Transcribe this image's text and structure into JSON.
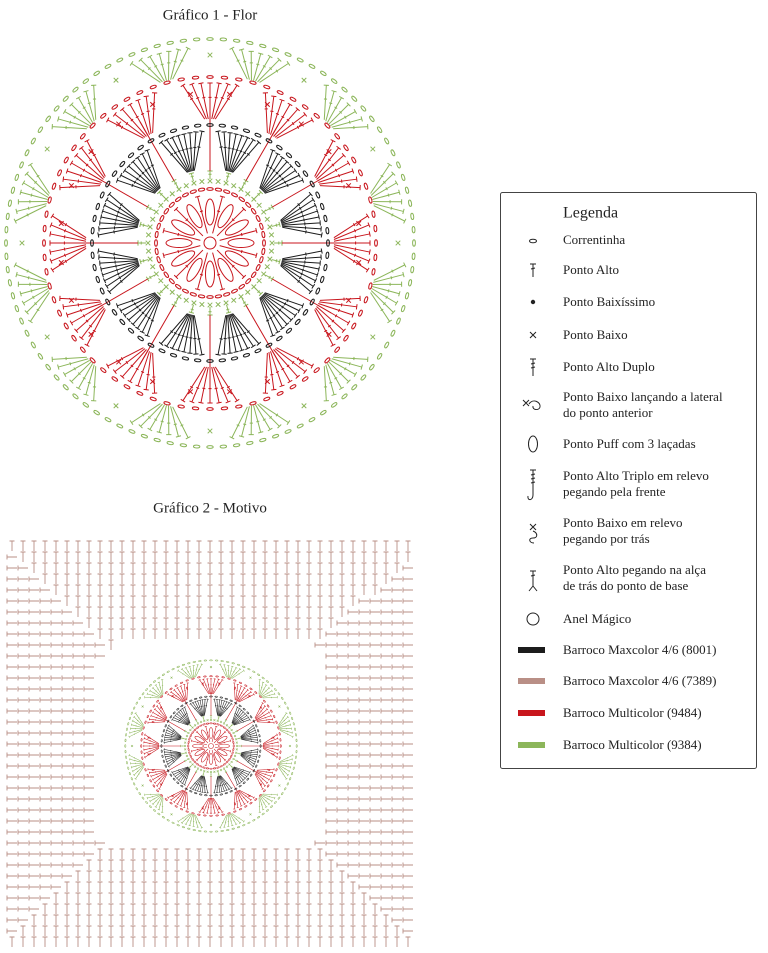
{
  "chart1": {
    "title": "Gráfico 1 - Flor"
  },
  "chart2": {
    "title": "Gráfico 2 - Motivo"
  },
  "legend": {
    "title": "Legenda",
    "items": [
      {
        "lines": [
          "Correntinha"
        ]
      },
      {
        "lines": [
          "Ponto Alto"
        ]
      },
      {
        "lines": [
          "Ponto Baixíssimo"
        ]
      },
      {
        "lines": [
          "Ponto Baixo"
        ]
      },
      {
        "lines": [
          "Ponto Alto Duplo"
        ]
      },
      {
        "lines": [
          "Ponto Baixo lançando a lateral",
          "do ponto anterior"
        ]
      },
      {
        "lines": [
          "Ponto Puff com 3 laçadas"
        ]
      },
      {
        "lines": [
          "Ponto Alto Triplo em relevo",
          "pegando pela frente"
        ]
      },
      {
        "lines": [
          "Ponto Baixo em relevo",
          "pegando por trás"
        ]
      },
      {
        "lines": [
          "Ponto Alto pegando na alça",
          "de trás do ponto de base"
        ]
      },
      {
        "lines": [
          "Anel Mágico"
        ]
      },
      {
        "lines": [
          "Barroco Maxcolor 4/6 (8001)"
        ],
        "color": "#1c1c1c"
      },
      {
        "lines": [
          "Barroco Maxcolor 4/6 (7389)"
        ],
        "color": "#b98f86"
      },
      {
        "lines": [
          "Barroco Multicolor (9484)"
        ],
        "color": "#c8161d"
      },
      {
        "lines": [
          "Barroco Multicolor (9384)"
        ],
        "color": "#8cb65a"
      }
    ]
  }
}
